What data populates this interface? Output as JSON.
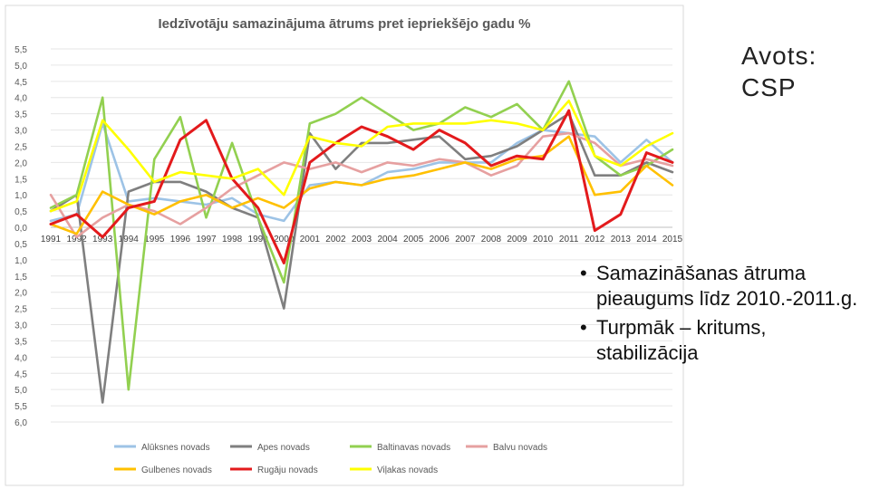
{
  "source_label": "Avots: CSP",
  "bullets": [
    "Samazināšanas ātruma pieaugums līdz 2010.-2011.g.",
    "Turpmāk – kritums, stabilizācija"
  ],
  "chart_data": {
    "type": "line",
    "title": "Iedzīvotāju samazinājuma ātrums pret iepriekšējo gadu %",
    "xlabel": "",
    "ylabel": "",
    "x": [
      "1991",
      "1992",
      "1993",
      "1994",
      "1995",
      "1996",
      "1997",
      "1998",
      "1999",
      "2000",
      "2001",
      "2002",
      "2003",
      "2004",
      "2005",
      "2006",
      "2007",
      "2008",
      "2009",
      "2010",
      "2011",
      "2012",
      "2013",
      "2014",
      "2015"
    ],
    "ylim": [
      -6.0,
      5.5
    ],
    "yticks": [
      5.5,
      5.0,
      4.5,
      4.0,
      3.5,
      3.0,
      2.5,
      2.0,
      1.5,
      1.0,
      0.5,
      0.0,
      -0.5,
      -1.0,
      -1.5,
      -2.0,
      -2.5,
      -3.0,
      -3.5,
      -4.0,
      -4.5,
      -5.0,
      -5.5,
      -6.0
    ],
    "ytick_labels": [
      "5,5",
      "5,0",
      "4,5",
      "4,0",
      "3,5",
      "3,0",
      "2,5",
      "2,0",
      "1,5",
      "1,0",
      "0,5",
      "0,0",
      "0,5",
      "1,0",
      "1,5",
      "2,0",
      "2,5",
      "3,0",
      "3,5",
      "4,0",
      "4,5",
      "5,0",
      "5,5",
      "6,0"
    ],
    "grid": true,
    "legend_position": "bottom",
    "series": [
      {
        "name": "Alūksnes novads",
        "color": "#9dc3e6",
        "values": [
          0.2,
          0.4,
          3.2,
          0.8,
          0.9,
          0.8,
          0.7,
          0.9,
          0.4,
          0.2,
          1.3,
          1.4,
          1.3,
          1.7,
          1.8,
          2.0,
          2.0,
          2.0,
          2.6,
          3.0,
          2.9,
          2.8,
          2.0,
          2.7,
          2.0
        ]
      },
      {
        "name": "Apes novads",
        "color": "#7f7f7f",
        "values": [
          0.5,
          1.0,
          -5.4,
          1.1,
          1.4,
          1.4,
          1.1,
          0.6,
          0.3,
          -2.5,
          2.9,
          1.8,
          2.6,
          2.6,
          2.7,
          2.8,
          2.1,
          2.2,
          2.5,
          3.0,
          3.5,
          1.6,
          1.6,
          2.0,
          1.7
        ]
      },
      {
        "name": "Baltinavas novads",
        "color": "#92d050",
        "values": [
          0.6,
          1.0,
          4.0,
          -5.0,
          2.1,
          3.4,
          0.3,
          2.6,
          0.3,
          -1.7,
          3.2,
          3.5,
          4.0,
          3.5,
          3.0,
          3.2,
          3.7,
          3.4,
          3.8,
          3.0,
          4.5,
          2.2,
          1.6,
          1.9,
          2.4
        ]
      },
      {
        "name": "Balvu novads",
        "color": "#e6a0a0",
        "values": [
          1.0,
          -0.3,
          0.3,
          0.7,
          0.5,
          0.1,
          0.6,
          1.2,
          1.6,
          2.0,
          1.8,
          2.0,
          1.7,
          2.0,
          1.9,
          2.1,
          2.0,
          1.6,
          1.9,
          2.8,
          2.9,
          2.6,
          1.9,
          2.1,
          1.9
        ]
      },
      {
        "name": "Gulbenes novads",
        "color": "#ffc000",
        "values": [
          0.1,
          -0.2,
          1.1,
          0.7,
          0.4,
          0.8,
          1.0,
          0.6,
          0.9,
          0.6,
          1.2,
          1.4,
          1.3,
          1.5,
          1.6,
          1.8,
          2.0,
          1.8,
          2.1,
          2.2,
          2.8,
          1.0,
          1.1,
          1.9,
          1.3
        ]
      },
      {
        "name": "Rugāju novads",
        "color": "#e31a1c",
        "values": [
          0.1,
          0.4,
          -0.3,
          0.6,
          0.8,
          2.7,
          3.3,
          1.5,
          0.6,
          -1.1,
          2.0,
          2.6,
          3.1,
          2.8,
          2.4,
          3.0,
          2.6,
          1.9,
          2.2,
          2.1,
          3.6,
          -0.1,
          0.4,
          2.3,
          2.0
        ]
      },
      {
        "name": "Viļakas novads",
        "color": "#ffff00",
        "values": [
          0.5,
          0.8,
          3.3,
          2.4,
          1.4,
          1.7,
          1.6,
          1.5,
          1.8,
          1.0,
          2.8,
          2.6,
          2.5,
          3.1,
          3.2,
          3.2,
          3.2,
          3.3,
          3.2,
          3.0,
          3.9,
          2.2,
          1.9,
          2.5,
          2.9
        ]
      }
    ]
  }
}
